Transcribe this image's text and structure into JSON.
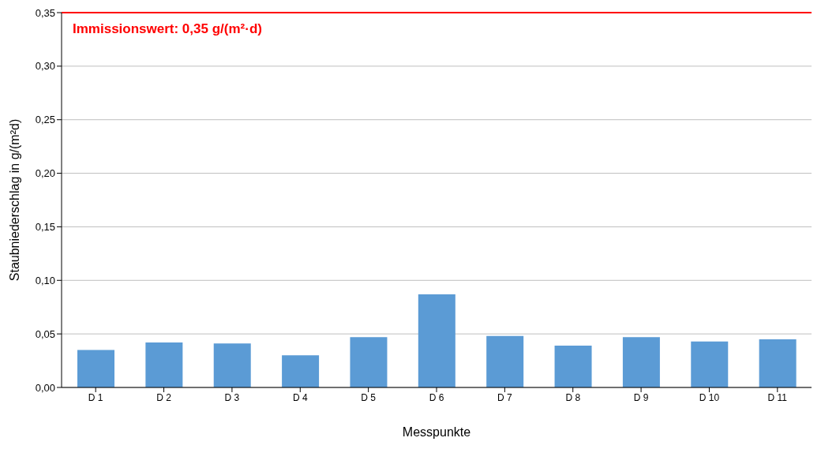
{
  "chart_data": {
    "type": "bar",
    "xlabel": "Messpunkte",
    "ylabel": "Staubniederschlag in g/(m²d)",
    "categories": [
      "D 1",
      "D 2",
      "D 3",
      "D 4",
      "D 5",
      "D 6",
      "D 7",
      "D 8",
      "D 9",
      "D 10",
      "D 11"
    ],
    "values": [
      0.035,
      0.042,
      0.041,
      0.03,
      0.047,
      0.087,
      0.048,
      0.039,
      0.047,
      0.043,
      0.045
    ],
    "color": "#5b9bd5",
    "ylim": [
      0,
      0.35
    ],
    "yticks": [
      {
        "value": 0,
        "label": "0,00"
      },
      {
        "value": 0.05,
        "label": "0,05"
      },
      {
        "value": 0.1,
        "label": "0,10"
      },
      {
        "value": 0.15,
        "label": "0,15"
      },
      {
        "value": 0.2,
        "label": "0,20"
      },
      {
        "value": 0.25,
        "label": "0,25"
      },
      {
        "value": 0.3,
        "label": "0,30"
      },
      {
        "value": 0.35,
        "label": "0,35"
      }
    ],
    "grid": "y",
    "ref_lines": [
      {
        "axis": "y",
        "value": 0.35,
        "label": "Immissionswert: 0,35 g/(m²·d)",
        "color": "#ff0000"
      }
    ]
  }
}
